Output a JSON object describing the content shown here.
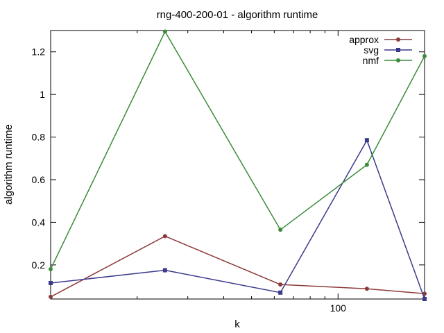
{
  "chart_data": {
    "type": "line",
    "title": "rng-400-200-01 - algorithm runtime",
    "xlabel": "k",
    "ylabel": "algorithm runtime",
    "x_scale": "log",
    "x": [
      10,
      25,
      63,
      126,
      200
    ],
    "xlim": [
      10,
      200
    ],
    "ylim": [
      0.04,
      1.3
    ],
    "x_ticks": [
      {
        "value": 100,
        "label": "100"
      }
    ],
    "y_ticks": [
      {
        "value": 0.2,
        "label": "0.2"
      },
      {
        "value": 0.4,
        "label": "0.4"
      },
      {
        "value": 0.6,
        "label": "0.6"
      },
      {
        "value": 0.8,
        "label": "0.8"
      },
      {
        "value": 1.0,
        "label": "1"
      },
      {
        "value": 1.2,
        "label": "1.2"
      }
    ],
    "grid": false,
    "legend_position": "top-right",
    "series": [
      {
        "name": "approx",
        "color": "#8b3a3a",
        "marker": "circle",
        "values": [
          0.05,
          0.335,
          0.108,
          0.088,
          0.065
        ]
      },
      {
        "name": "svg",
        "color": "#3a3a8b",
        "marker": "square",
        "values": [
          0.115,
          0.175,
          0.07,
          0.785,
          0.04
        ]
      },
      {
        "name": "nmf",
        "color": "#3a8b3a",
        "marker": "circle",
        "values": [
          0.18,
          1.295,
          0.365,
          0.67,
          1.18
        ]
      }
    ]
  }
}
